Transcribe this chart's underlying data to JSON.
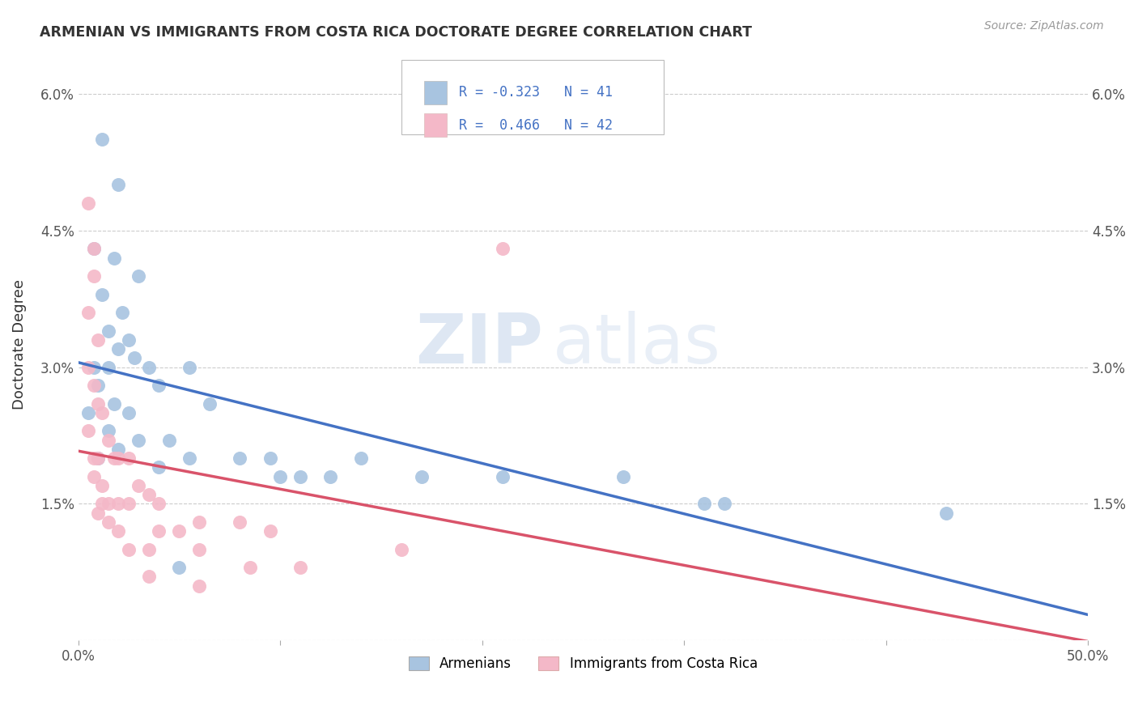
{
  "title": "ARMENIAN VS IMMIGRANTS FROM COSTA RICA DOCTORATE DEGREE CORRELATION CHART",
  "source_text": "Source: ZipAtlas.com",
  "ylabel": "Doctorate Degree",
  "xlim": [
    0.0,
    0.5
  ],
  "ylim": [
    0.0,
    0.065
  ],
  "xticks": [
    0.0,
    0.1,
    0.2,
    0.3,
    0.4,
    0.5
  ],
  "xticklabels": [
    "0.0%",
    "",
    "",
    "",
    "",
    "50.0%"
  ],
  "yticks": [
    0.0,
    0.015,
    0.03,
    0.045,
    0.06
  ],
  "yticklabels": [
    "",
    "1.5%",
    "3.0%",
    "4.5%",
    "6.0%"
  ],
  "legend_r_armenian": "-0.323",
  "legend_n_armenian": "41",
  "legend_r_costarica": "0.466",
  "legend_n_costarica": "42",
  "color_armenian": "#a8c4e0",
  "color_costarica": "#f4b8c8",
  "line_color_armenian": "#4472c4",
  "line_color_costarica": "#d9536a",
  "watermark_zip": "ZIP",
  "watermark_atlas": "atlas",
  "armenian_points": [
    [
      0.012,
      0.055
    ],
    [
      0.02,
      0.05
    ],
    [
      0.008,
      0.043
    ],
    [
      0.018,
      0.042
    ],
    [
      0.03,
      0.04
    ],
    [
      0.012,
      0.038
    ],
    [
      0.022,
      0.036
    ],
    [
      0.015,
      0.034
    ],
    [
      0.025,
      0.033
    ],
    [
      0.02,
      0.032
    ],
    [
      0.028,
      0.031
    ],
    [
      0.008,
      0.03
    ],
    [
      0.015,
      0.03
    ],
    [
      0.035,
      0.03
    ],
    [
      0.055,
      0.03
    ],
    [
      0.01,
      0.028
    ],
    [
      0.04,
      0.028
    ],
    [
      0.018,
      0.026
    ],
    [
      0.065,
      0.026
    ],
    [
      0.005,
      0.025
    ],
    [
      0.025,
      0.025
    ],
    [
      0.015,
      0.023
    ],
    [
      0.03,
      0.022
    ],
    [
      0.045,
      0.022
    ],
    [
      0.02,
      0.021
    ],
    [
      0.01,
      0.02
    ],
    [
      0.055,
      0.02
    ],
    [
      0.08,
      0.02
    ],
    [
      0.095,
      0.02
    ],
    [
      0.14,
      0.02
    ],
    [
      0.04,
      0.019
    ],
    [
      0.1,
      0.018
    ],
    [
      0.11,
      0.018
    ],
    [
      0.125,
      0.018
    ],
    [
      0.17,
      0.018
    ],
    [
      0.21,
      0.018
    ],
    [
      0.27,
      0.018
    ],
    [
      0.31,
      0.015
    ],
    [
      0.32,
      0.015
    ],
    [
      0.43,
      0.014
    ],
    [
      0.05,
      0.008
    ]
  ],
  "costarica_points": [
    [
      0.005,
      0.048
    ],
    [
      0.008,
      0.043
    ],
    [
      0.008,
      0.04
    ],
    [
      0.005,
      0.036
    ],
    [
      0.01,
      0.033
    ],
    [
      0.005,
      0.03
    ],
    [
      0.008,
      0.028
    ],
    [
      0.01,
      0.026
    ],
    [
      0.012,
      0.025
    ],
    [
      0.005,
      0.023
    ],
    [
      0.015,
      0.022
    ],
    [
      0.008,
      0.02
    ],
    [
      0.01,
      0.02
    ],
    [
      0.018,
      0.02
    ],
    [
      0.02,
      0.02
    ],
    [
      0.025,
      0.02
    ],
    [
      0.008,
      0.018
    ],
    [
      0.012,
      0.017
    ],
    [
      0.03,
      0.017
    ],
    [
      0.035,
      0.016
    ],
    [
      0.012,
      0.015
    ],
    [
      0.015,
      0.015
    ],
    [
      0.02,
      0.015
    ],
    [
      0.025,
      0.015
    ],
    [
      0.04,
      0.015
    ],
    [
      0.01,
      0.014
    ],
    [
      0.015,
      0.013
    ],
    [
      0.06,
      0.013
    ],
    [
      0.08,
      0.013
    ],
    [
      0.02,
      0.012
    ],
    [
      0.04,
      0.012
    ],
    [
      0.05,
      0.012
    ],
    [
      0.095,
      0.012
    ],
    [
      0.025,
      0.01
    ],
    [
      0.035,
      0.01
    ],
    [
      0.06,
      0.01
    ],
    [
      0.16,
      0.01
    ],
    [
      0.085,
      0.008
    ],
    [
      0.11,
      0.008
    ],
    [
      0.035,
      0.007
    ],
    [
      0.06,
      0.006
    ],
    [
      0.21,
      0.043
    ]
  ]
}
